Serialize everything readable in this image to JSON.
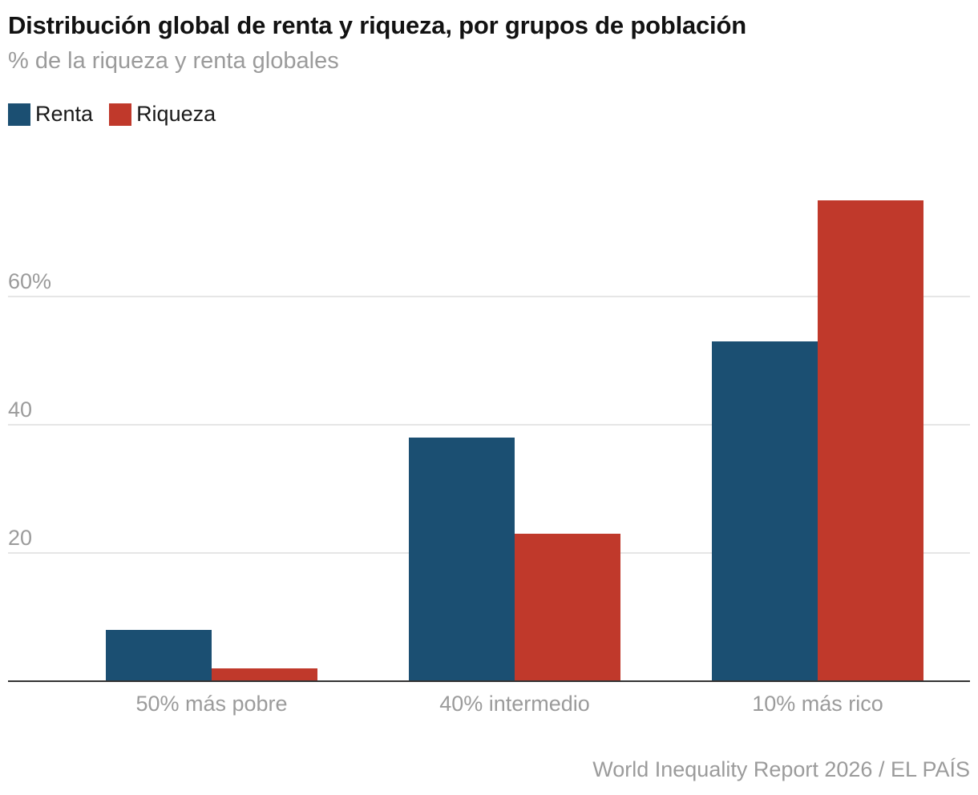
{
  "chart_data": {
    "type": "bar",
    "title": "Distribución global de renta y riqueza, por grupos de población",
    "subtitle": "% de la riqueza y renta globales",
    "categories": [
      "50% más pobre",
      "40% intermedio",
      "10% más rico"
    ],
    "series": [
      {
        "name": "Renta",
        "color": "#1b4f72",
        "values": [
          8,
          38,
          53
        ]
      },
      {
        "name": "Riqueza",
        "color": "#c0392b",
        "values": [
          2,
          23,
          75
        ]
      }
    ],
    "ylim": [
      0,
      75
    ],
    "yticks": [
      20,
      40,
      60
    ],
    "ytick_labels": [
      "20",
      "40",
      "60%"
    ],
    "grid": true,
    "legend_position": "top-left",
    "source": "World Inequality Report 2026 / EL PAÍS"
  }
}
